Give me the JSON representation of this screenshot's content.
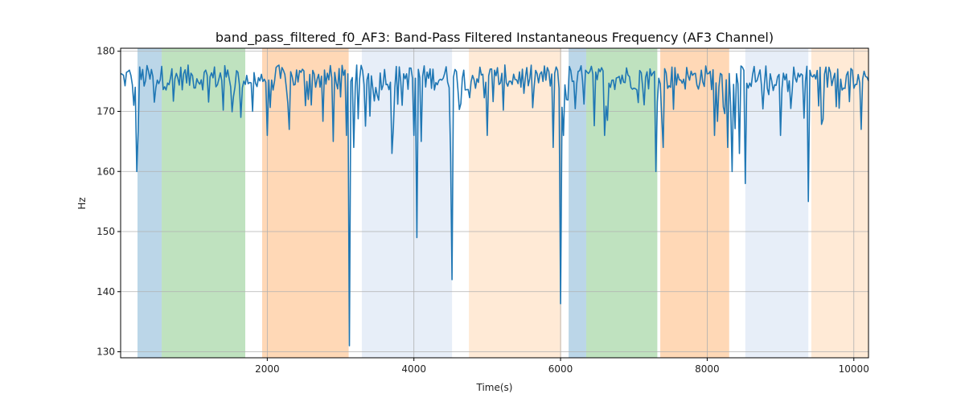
{
  "chart_data": {
    "type": "line",
    "title": "band_pass_filtered_f0_AF3: Band-Pass Filtered Instantaneous Frequency (AF3 Channel)",
    "xlabel": "Time(s)",
    "ylabel": "Hz",
    "xlim": [
      0,
      10200
    ],
    "ylim": [
      129,
      180.5
    ],
    "xticks": [
      2000,
      4000,
      6000,
      8000,
      10000
    ],
    "yticks": [
      130,
      140,
      150,
      160,
      170,
      180
    ],
    "grid": true,
    "line_color": "#1f77b4",
    "bands": [
      {
        "start": 230,
        "end": 560,
        "color": "#1f77b4",
        "opacity": 0.3
      },
      {
        "start": 560,
        "end": 1700,
        "color": "#2ca02c",
        "opacity": 0.3
      },
      {
        "start": 1930,
        "end": 3110,
        "color": "#ff7f0e",
        "opacity": 0.3
      },
      {
        "start": 3290,
        "end": 4520,
        "color": "#aec7e8",
        "opacity": 0.3
      },
      {
        "start": 4750,
        "end": 6010,
        "color": "#ffbb78",
        "opacity": 0.3
      },
      {
        "start": 6110,
        "end": 6350,
        "color": "#1f77b4",
        "opacity": 0.3
      },
      {
        "start": 6350,
        "end": 7320,
        "color": "#2ca02c",
        "opacity": 0.3
      },
      {
        "start": 7360,
        "end": 8300,
        "color": "#ff7f0e",
        "opacity": 0.3
      },
      {
        "start": 8520,
        "end": 9380,
        "color": "#aec7e8",
        "opacity": 0.3
      },
      {
        "start": 9420,
        "end": 10200,
        "color": "#ffbb78",
        "opacity": 0.3
      }
    ],
    "series": [
      {
        "name": "band_pass_filtered_f0_AF3",
        "baseline": 175,
        "spikes": [
          {
            "x": 50,
            "y": 176
          },
          {
            "x": 180,
            "y": 171
          },
          {
            "x": 220,
            "y": 160
          },
          {
            "x": 250,
            "y": 167
          },
          {
            "x": 1650,
            "y": 169
          },
          {
            "x": 1800,
            "y": 170
          },
          {
            "x": 2000,
            "y": 166
          },
          {
            "x": 2300,
            "y": 167
          },
          {
            "x": 2900,
            "y": 165
          },
          {
            "x": 3090,
            "y": 166
          },
          {
            "x": 3120,
            "y": 131
          },
          {
            "x": 3180,
            "y": 164
          },
          {
            "x": 3700,
            "y": 163
          },
          {
            "x": 4000,
            "y": 166
          },
          {
            "x": 4040,
            "y": 149
          },
          {
            "x": 4100,
            "y": 165
          },
          {
            "x": 4510,
            "y": 163
          },
          {
            "x": 4530,
            "y": 142
          },
          {
            "x": 5000,
            "y": 166
          },
          {
            "x": 5900,
            "y": 164
          },
          {
            "x": 6000,
            "y": 138
          },
          {
            "x": 6050,
            "y": 166
          },
          {
            "x": 6600,
            "y": 166
          },
          {
            "x": 7300,
            "y": 160
          },
          {
            "x": 7400,
            "y": 164
          },
          {
            "x": 8100,
            "y": 166
          },
          {
            "x": 8290,
            "y": 164
          },
          {
            "x": 8350,
            "y": 160
          },
          {
            "x": 8450,
            "y": 163
          },
          {
            "x": 8520,
            "y": 158
          },
          {
            "x": 9000,
            "y": 166
          },
          {
            "x": 9380,
            "y": 155
          },
          {
            "x": 10100,
            "y": 167
          }
        ]
      }
    ]
  }
}
